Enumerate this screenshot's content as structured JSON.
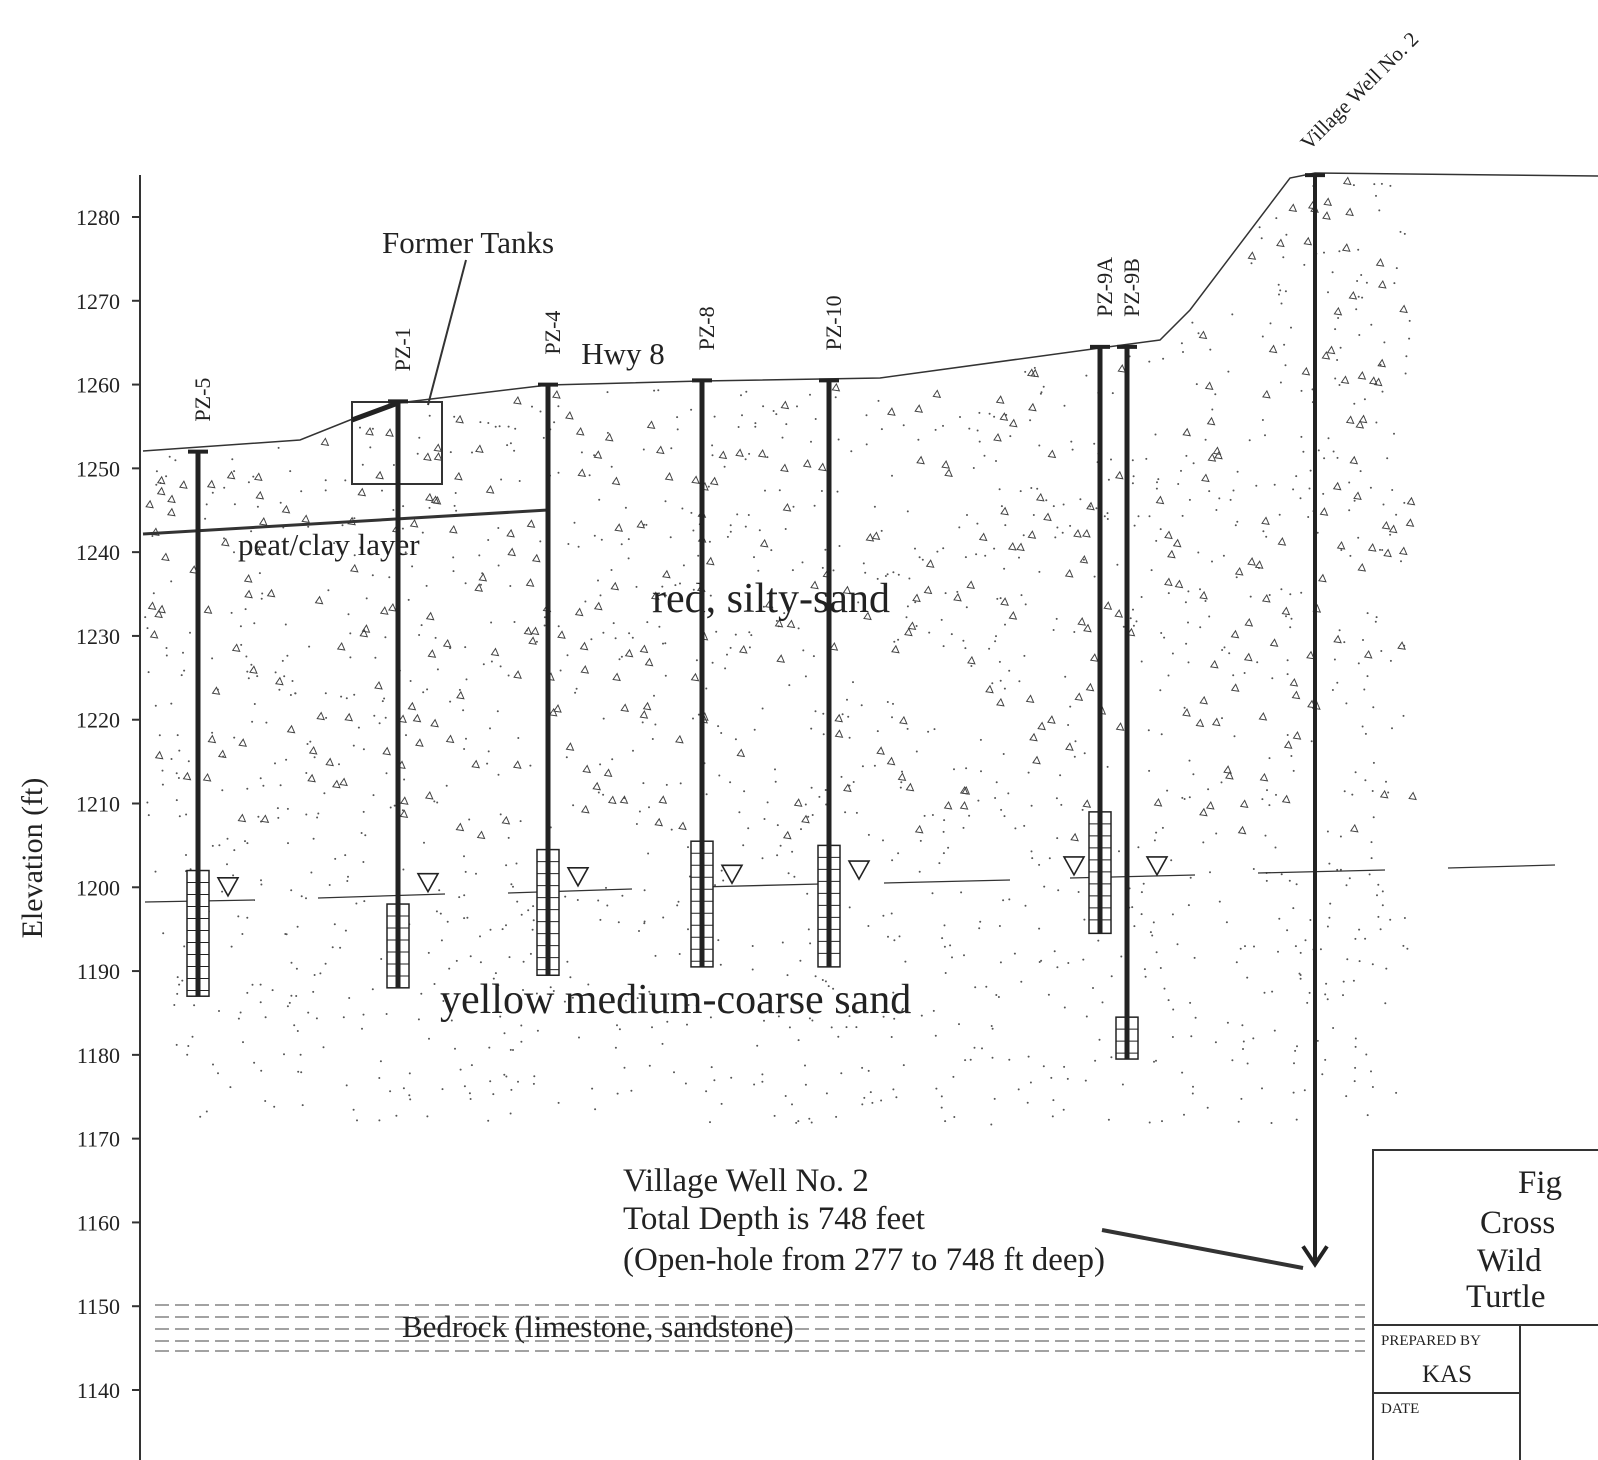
{
  "axis": {
    "label": "Elevation (ft)",
    "ticks": [
      1280,
      1270,
      1260,
      1250,
      1240,
      1230,
      1220,
      1210,
      1200,
      1190,
      1180,
      1170,
      1160,
      1150,
      1140
    ]
  },
  "wells": [
    {
      "name": "PZ-5",
      "top": 1252,
      "bottom": 1187,
      "screen_top": 1202,
      "water": 1198.5
    },
    {
      "name": "PZ-1",
      "top": 1258,
      "bottom": 1188,
      "screen_top": 1198,
      "water": 1199
    },
    {
      "name": "PZ-4",
      "top": 1260,
      "bottom": 1189.5,
      "screen_top": 1204.5,
      "water": 1199.7
    },
    {
      "name": "PZ-8",
      "top": 1260.5,
      "bottom": 1190.5,
      "screen_top": 1205.5,
      "water": 1200
    },
    {
      "name": "PZ-10",
      "top": 1260.5,
      "bottom": 1190.5,
      "screen_top": 1205,
      "water": 1200.5
    },
    {
      "name": "PZ-9A",
      "top": 1264.5,
      "bottom": 1194.5,
      "screen_top": 1209,
      "water": 1201
    },
    {
      "name": "PZ-9B",
      "top": 1264.5,
      "bottom": 1179.5,
      "screen_top": 1184.5,
      "water": 1201
    },
    {
      "name": "Village Well No. 2",
      "top": 1285,
      "bottom": 1155
    }
  ],
  "labels": {
    "former_tanks": "Former Tanks",
    "hwy": "Hwy 8",
    "peat": "peat/clay layer",
    "red_sand": "red, silty-sand",
    "yellow_sand": "yellow medium-coarse sand",
    "bedrock": "Bedrock (limestone, sandstone)"
  },
  "note": [
    "Village Well No. 2",
    "Total Depth is 748 feet",
    "(Open-hole from 277 to 748 ft deep)"
  ],
  "title_block": {
    "lines": [
      "Fig",
      "Cross",
      "Wild",
      "Turtle"
    ],
    "prepared_by_label": "PREPARED BY",
    "prepared_by": "KAS",
    "date_label": "DATE"
  }
}
